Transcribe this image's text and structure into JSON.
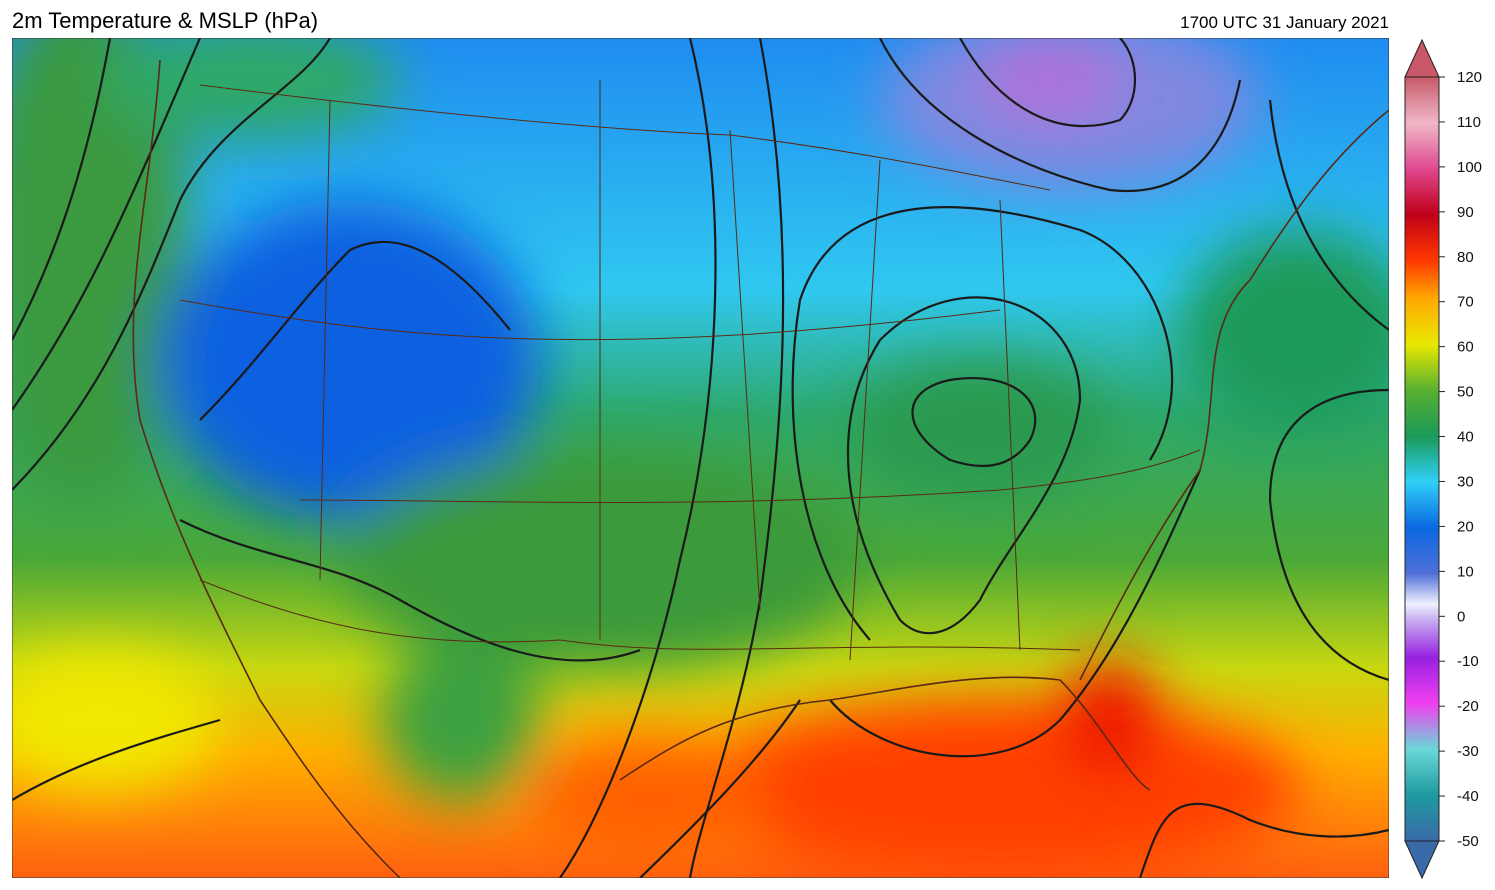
{
  "header": {
    "title": "2m Temperature & MSLP (hPa)",
    "valid_time": "1700 UTC 31 January 2021"
  },
  "colorbar": {
    "range": [
      -50,
      120
    ],
    "ticks": [
      120,
      110,
      100,
      90,
      80,
      70,
      60,
      50,
      40,
      30,
      20,
      10,
      0,
      -10,
      -20,
      -30,
      -40,
      -50
    ]
  }
}
